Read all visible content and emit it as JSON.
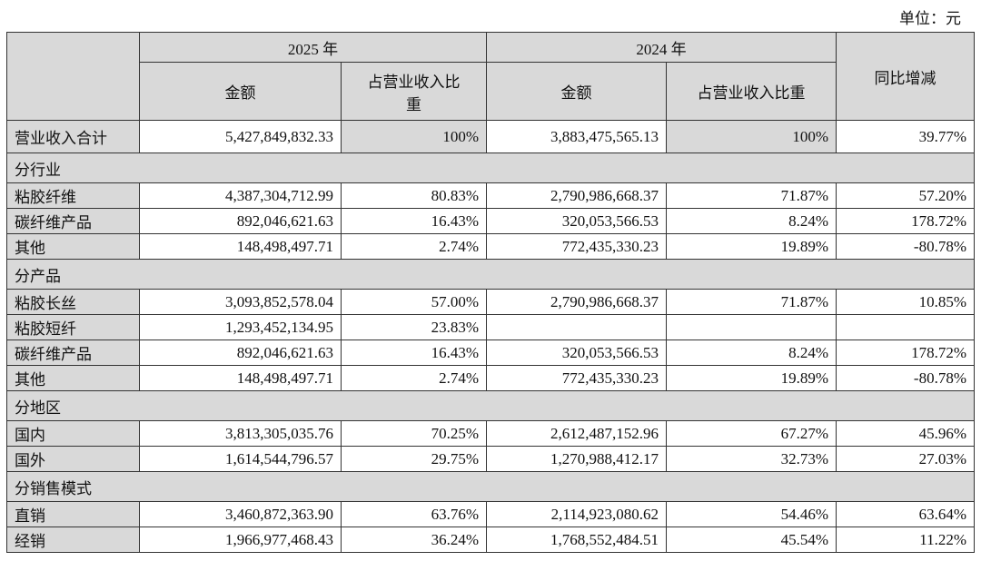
{
  "unit": "单位：元",
  "header": {
    "groups": [
      "2025 年",
      "2024 年"
    ],
    "amount": "金额",
    "ratio": "占营业收入比重",
    "yoy": "同比增减"
  },
  "table": {
    "rows": [
      {
        "cells": [
          "营业收入合计",
          "5,427,849,832.33",
          "100%",
          "3,883,475,565.13",
          "100%",
          "39.77%"
        ]
      },
      {
        "section": "分行业"
      },
      {
        "cells": [
          "粘胶纤维",
          "4,387,304,712.99",
          "80.83%",
          "2,790,986,668.37",
          "71.87%",
          "57.20%"
        ]
      },
      {
        "cells": [
          "碳纤维产品",
          "892,046,621.63",
          "16.43%",
          "320,053,566.53",
          "8.24%",
          "178.72%"
        ]
      },
      {
        "cells": [
          "其他",
          "148,498,497.71",
          "2.74%",
          "772,435,330.23",
          "19.89%",
          "-80.78%"
        ]
      },
      {
        "section": "分产品"
      },
      {
        "cells": [
          "粘胶长丝",
          "3,093,852,578.04",
          "57.00%",
          "2,790,986,668.37",
          "71.87%",
          "10.85%"
        ]
      },
      {
        "cells": [
          "粘胶短纤",
          "1,293,452,134.95",
          "23.83%",
          null,
          null,
          null
        ]
      },
      {
        "cells": [
          "碳纤维产品",
          "892,046,621.63",
          "16.43%",
          "320,053,566.53",
          "8.24%",
          "178.72%"
        ]
      },
      {
        "cells": [
          "其他",
          "148,498,497.71",
          "2.74%",
          "772,435,330.23",
          "19.89%",
          "-80.78%"
        ]
      },
      {
        "section": "分地区"
      },
      {
        "cells": [
          "国内",
          "3,813,305,035.76",
          "70.25%",
          "2,612,487,152.96",
          "67.27%",
          "45.96%"
        ]
      },
      {
        "cells": [
          "国外",
          "1,614,544,796.57",
          "29.75%",
          "1,270,988,412.17",
          "32.73%",
          "27.03%"
        ]
      },
      {
        "section": "分销售模式"
      },
      {
        "cells": [
          "直销",
          "3,460,872,363.90",
          "63.76%",
          "2,114,923,080.62",
          "54.46%",
          "63.64%"
        ]
      },
      {
        "cells": [
          "经销",
          "1,966,977,468.43",
          "36.24%",
          "1,768,552,484.51",
          "45.54%",
          "11.22%"
        ]
      }
    ]
  }
}
